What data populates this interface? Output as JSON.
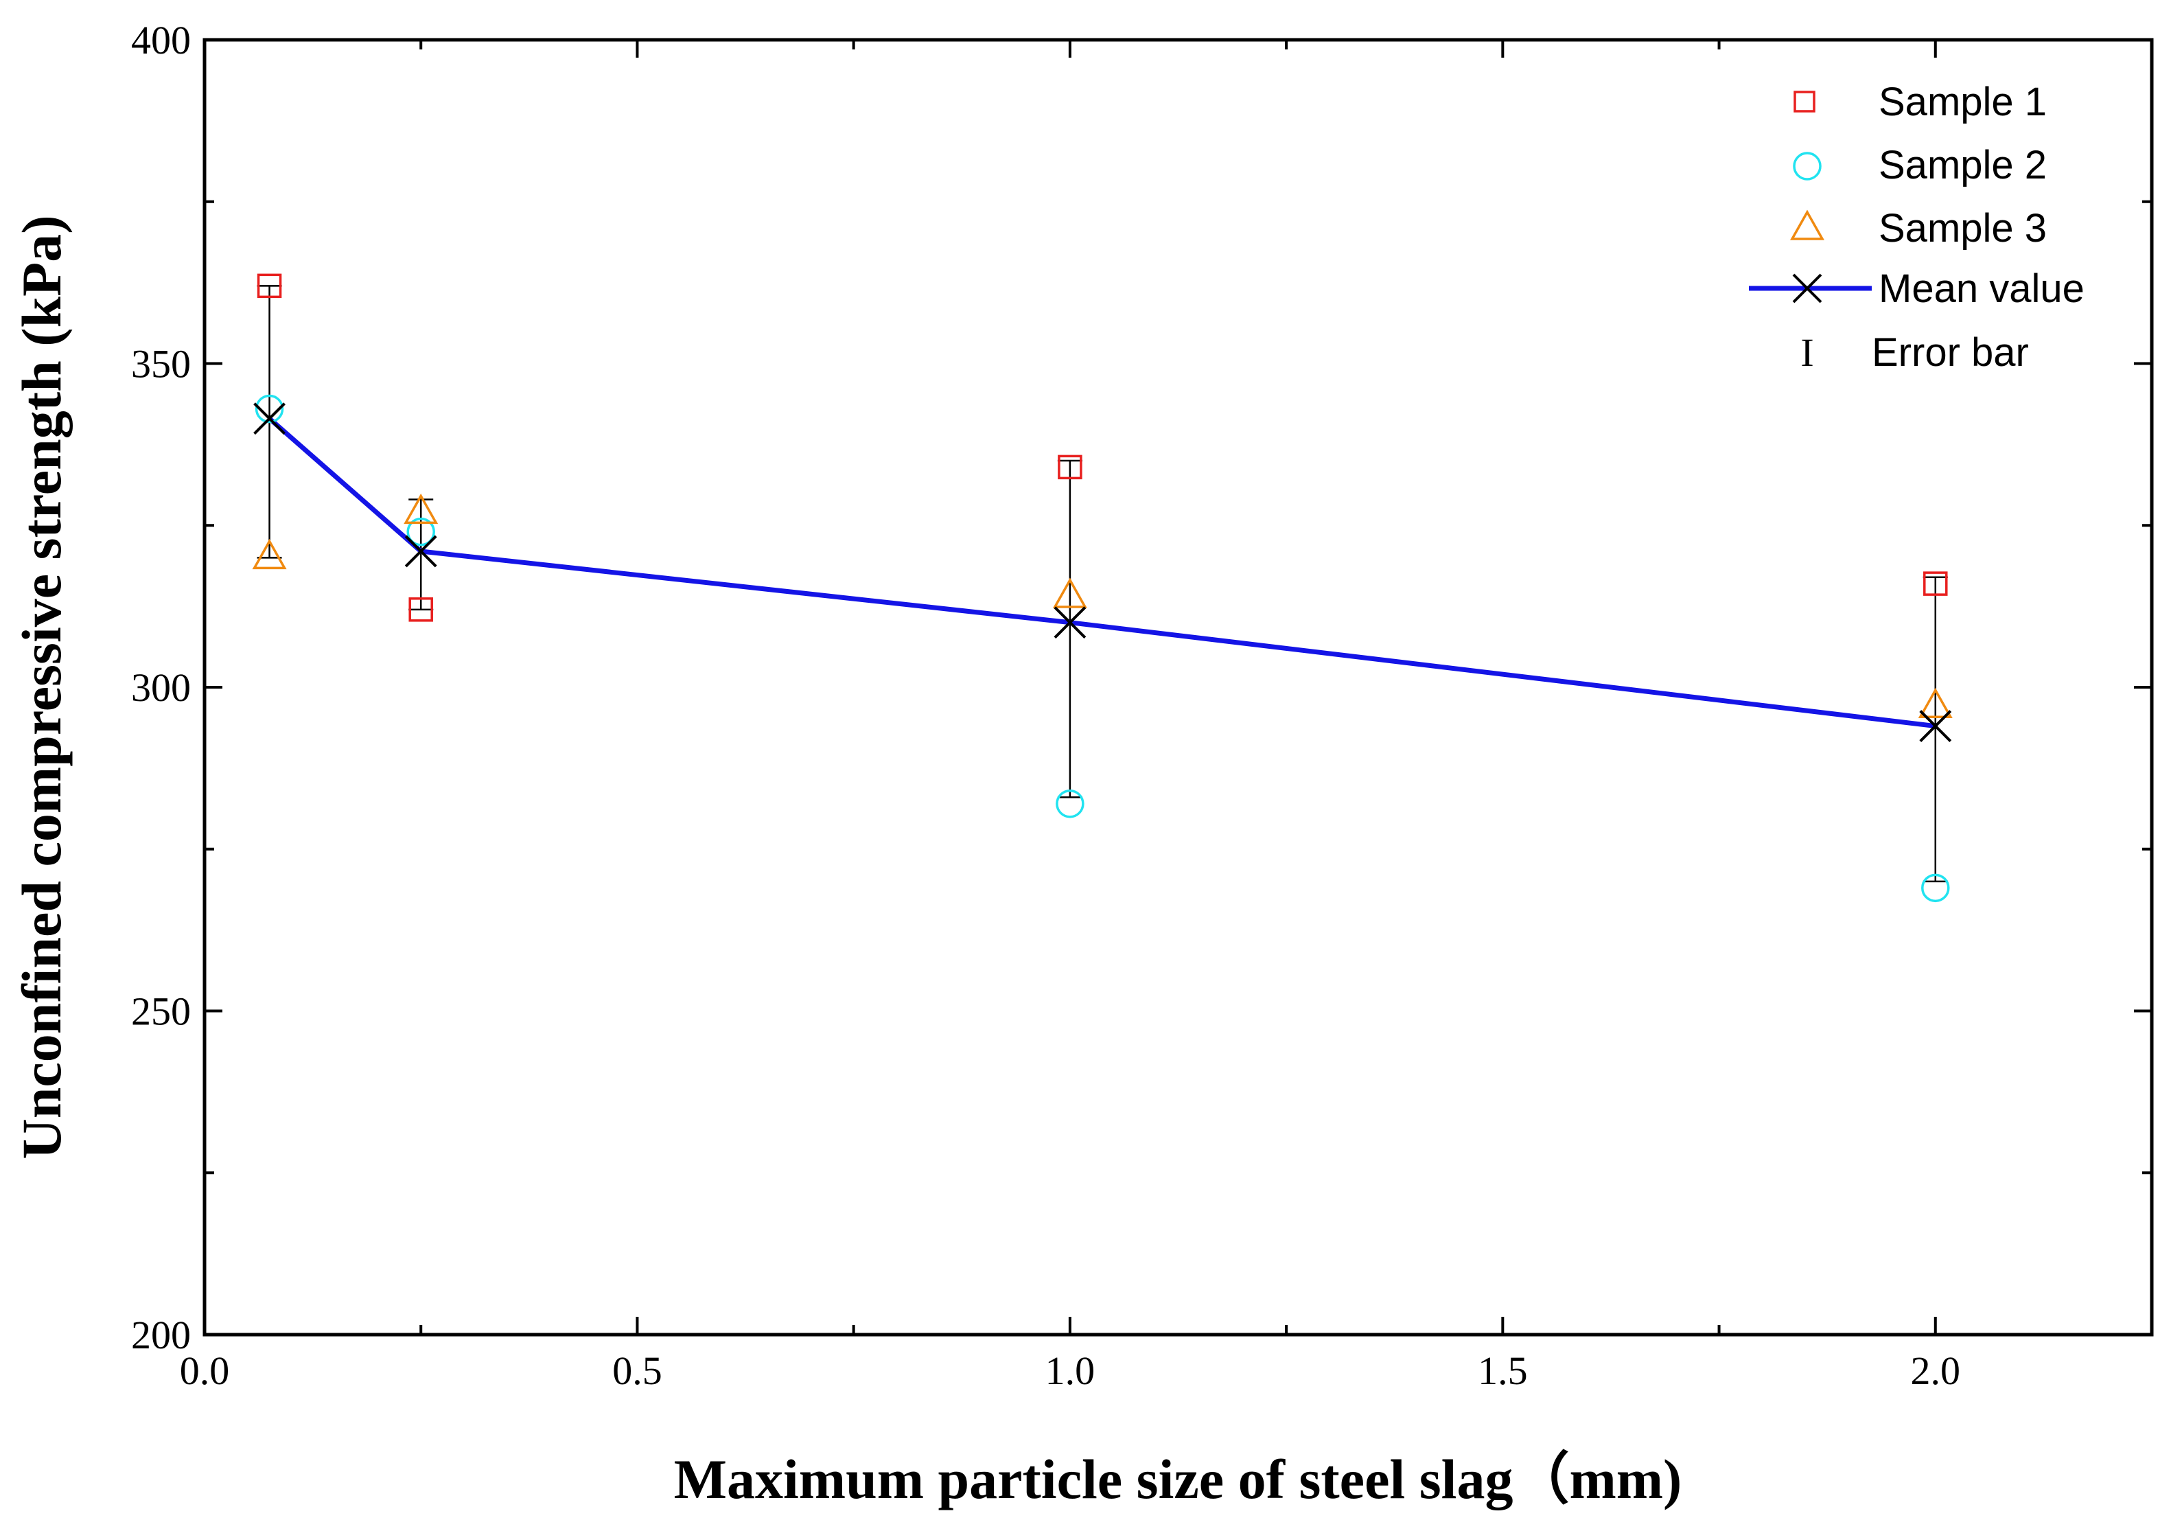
{
  "chart_data": {
    "type": "scatter",
    "title": "",
    "xlabel": "Maximum particle size of steel slag（mm)",
    "ylabel": "Unconfined compressive strength (kPa)",
    "xlim": [
      0.0,
      2.25
    ],
    "ylim": [
      200,
      400
    ],
    "x_ticks": [
      0.0,
      0.5,
      1.0,
      1.5,
      2.0
    ],
    "x_tick_labels": [
      "0.0",
      "0.5",
      "1.0",
      "1.5",
      "2.0"
    ],
    "y_ticks": [
      200,
      250,
      300,
      350,
      400
    ],
    "y_tick_labels": [
      "200",
      "250",
      "300",
      "350",
      "400"
    ],
    "x": [
      0.075,
      0.25,
      1.0,
      2.0
    ],
    "series": [
      {
        "name": "Sample 1",
        "marker": "square",
        "color": "#e8201f",
        "values": [
          362,
          312,
          334,
          316
        ]
      },
      {
        "name": "Sample 2",
        "marker": "circle",
        "color": "#21e3f0",
        "values": [
          343,
          324,
          282,
          269
        ]
      },
      {
        "name": "Sample 3",
        "marker": "triangle",
        "color": "#f08a10",
        "values": [
          320,
          327,
          314,
          297
        ]
      },
      {
        "name": "Mean value",
        "marker": "x",
        "color": "#1414e6",
        "line": true,
        "values": [
          341.5,
          321,
          310,
          294
        ]
      }
    ],
    "error_bars": {
      "name": "Error bar",
      "legend_symbol": "I",
      "low": [
        320,
        312,
        283,
        270
      ],
      "high": [
        362,
        329,
        335,
        317
      ]
    },
    "legend_position": "top-right",
    "grid": false
  }
}
